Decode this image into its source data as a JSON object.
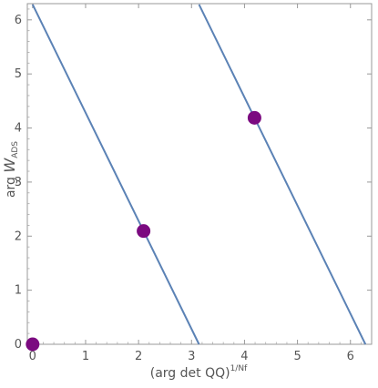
{
  "chart_data": {
    "type": "scatter",
    "title": "",
    "xlabel": {
      "main": "(arg det QQ)",
      "sup": "1/Nf"
    },
    "ylabel": {
      "main": "arg ",
      "var": "W",
      "sub": "ADS"
    },
    "xlim": [
      -0.1,
      6.4
    ],
    "ylim": [
      0,
      6.3
    ],
    "x_ticks": [
      "0",
      "1",
      "2",
      "3",
      "4",
      "5",
      "6"
    ],
    "y_ticks": [
      "0",
      "1",
      "2",
      "3",
      "4",
      "5",
      "6"
    ],
    "grid": false,
    "lines": [
      {
        "x": [
          0,
          3.1416
        ],
        "y": [
          6.2832,
          0
        ],
        "color": "#5b82b5"
      },
      {
        "x": [
          3.1416,
          6.2832
        ],
        "y": [
          6.2832,
          0
        ],
        "color": "#5b82b5"
      }
    ],
    "points": {
      "color": "#7b0a80",
      "x": [
        0,
        2.0944,
        4.1888
      ],
      "y": [
        0,
        2.0944,
        4.1888
      ]
    }
  }
}
